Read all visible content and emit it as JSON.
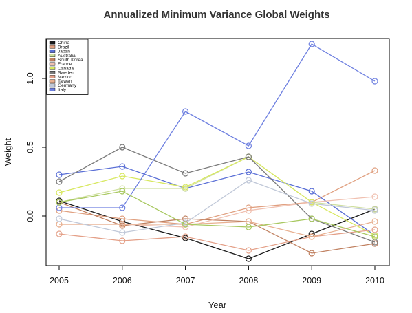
{
  "chart_data": {
    "type": "line",
    "title": "Annualized Minimum Variance Global Weights",
    "xlabel": "Year",
    "ylabel": "Weight",
    "x": [
      2005,
      2006,
      2007,
      2008,
      2009,
      2010
    ],
    "xlim": [
      2005,
      2010
    ],
    "ylim": [
      -0.35,
      1.3
    ],
    "yticks": [
      0.0,
      0.5,
      1.0
    ],
    "yticks_labels": [
      "0.0",
      "0.5",
      "1.0"
    ],
    "legend_position": "top-left",
    "grid": false,
    "series": [
      {
        "name": "China",
        "color": "#1a1a1a",
        "values": [
          0.11,
          -0.04,
          -0.16,
          -0.31,
          -0.13,
          0.05
        ]
      },
      {
        "name": "Brazil",
        "color": "#e0a080",
        "values": [
          0.04,
          -0.02,
          -0.06,
          0.06,
          0.1,
          0.33
        ]
      },
      {
        "name": "Japan",
        "color": "#5a6fd6",
        "values": [
          0.3,
          0.36,
          0.2,
          0.32,
          0.18,
          -0.14
        ]
      },
      {
        "name": "Australia",
        "color": "#d0e0a0",
        "values": [
          0.1,
          0.2,
          0.2,
          0.43,
          0.1,
          0.05
        ]
      },
      {
        "name": "South Korea",
        "color": "#c08060",
        "values": [
          0.1,
          -0.07,
          -0.02,
          -0.04,
          -0.27,
          -0.2
        ]
      },
      {
        "name": "France",
        "color": "#f0c0b0",
        "values": [
          -0.06,
          -0.06,
          -0.08,
          0.04,
          0.1,
          0.14
        ]
      },
      {
        "name": "Canada",
        "color": "#d8e860",
        "values": [
          0.17,
          0.29,
          0.21,
          0.43,
          0.1,
          -0.14
        ]
      },
      {
        "name": "Sweden",
        "color": "#7a7a7a",
        "values": [
          0.25,
          0.5,
          0.31,
          0.43,
          -0.02,
          -0.19
        ]
      },
      {
        "name": "Mexico",
        "color": "#e4a088",
        "values": [
          -0.13,
          -0.18,
          -0.15,
          -0.25,
          -0.15,
          -0.1
        ]
      },
      {
        "name": "Taiwan",
        "color": "#e8b090",
        "values": [
          -0.06,
          -0.06,
          -0.06,
          -0.04,
          -0.15,
          -0.04
        ]
      },
      {
        "name": "Germany",
        "color": "#c0c8d8",
        "values": [
          -0.02,
          -0.12,
          -0.05,
          0.26,
          0.09,
          0.04
        ]
      },
      {
        "name": "Italy",
        "color": "#6d7fe0",
        "values": [
          0.06,
          0.06,
          0.76,
          0.51,
          1.25,
          0.98
        ]
      },
      {
        "name": "",
        "color": "#a8c860",
        "values": [
          0.1,
          0.18,
          -0.06,
          -0.08,
          -0.02,
          -0.15
        ]
      }
    ]
  }
}
